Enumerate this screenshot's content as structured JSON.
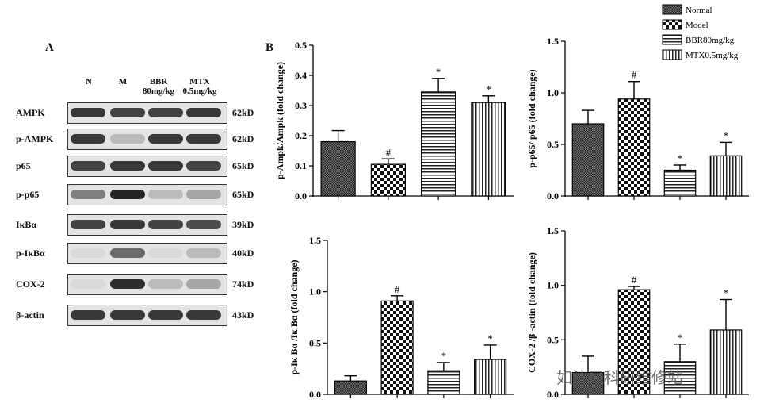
{
  "panel_a_label": "A",
  "panel_b_label": "B",
  "blot": {
    "lanes": [
      "N",
      "M",
      "BBR\n80mg/kg",
      "MTX\n0.5mg/kg"
    ],
    "rows": [
      {
        "name": "AMPK",
        "size": "62kD",
        "intensity": [
          0.85,
          0.8,
          0.8,
          0.85
        ]
      },
      {
        "name": "p-AMPK",
        "size": "62kD",
        "intensity": [
          0.85,
          0.2,
          0.85,
          0.85
        ]
      },
      {
        "name": "p65",
        "size": "65kD",
        "intensity": [
          0.8,
          0.85,
          0.85,
          0.8
        ]
      },
      {
        "name": "p-p65",
        "size": "65kD",
        "intensity": [
          0.5,
          0.95,
          0.2,
          0.3
        ]
      },
      {
        "name": "IκBα",
        "size": "39kD",
        "intensity": [
          0.8,
          0.85,
          0.8,
          0.75
        ]
      },
      {
        "name": "p-IκBα",
        "size": "40kD",
        "intensity": [
          0.05,
          0.6,
          0.05,
          0.2
        ]
      },
      {
        "name": "COX-2",
        "size": "74kD",
        "intensity": [
          0.05,
          0.9,
          0.2,
          0.3
        ]
      },
      {
        "name": "β-actin",
        "size": "43kD",
        "intensity": [
          0.85,
          0.85,
          0.85,
          0.85
        ]
      }
    ]
  },
  "legend": [
    {
      "label": "Normal",
      "pattern": "dense"
    },
    {
      "label": "Model",
      "pattern": "checker"
    },
    {
      "label": "BBR80mg/kg",
      "pattern": "hlines"
    },
    {
      "label": "MTX0.5mg/kg",
      "pattern": "vlines"
    }
  ],
  "chart_data": [
    {
      "type": "bar",
      "ylabel": "p-Ampk/Ampk (fold change)",
      "ylim": [
        0,
        0.5
      ],
      "yticks": [
        "0.0",
        "0.1",
        "0.2",
        "0.3",
        "0.4",
        "0.5"
      ],
      "categories": [
        "Normal",
        "Model",
        "BBR80mg/kg",
        "MTX0.5mg/kg"
      ],
      "values": [
        0.18,
        0.105,
        0.345,
        0.31
      ],
      "errors": [
        0.037,
        0.018,
        0.045,
        0.022
      ],
      "annotations": [
        "",
        "#",
        "*",
        "*"
      ]
    },
    {
      "type": "bar",
      "ylabel": "p-p65/ p65 (fold change)",
      "ylim": [
        0,
        1.5
      ],
      "yticks": [
        "0.0",
        "0.5",
        "1.0",
        "1.5"
      ],
      "categories": [
        "Normal",
        "Model",
        "BBR80mg/kg",
        "MTX0.5mg/kg"
      ],
      "values": [
        0.7,
        0.94,
        0.25,
        0.39
      ],
      "errors": [
        0.13,
        0.17,
        0.05,
        0.13
      ],
      "annotations": [
        "",
        "#",
        "*",
        "*"
      ]
    },
    {
      "type": "bar",
      "ylabel": "p-Iκ Bα /Iκ Bα (fold change)",
      "ylim": [
        0,
        1.5
      ],
      "yticks": [
        "0.0",
        "0.5",
        "1.0",
        "1.5"
      ],
      "categories": [
        "Normal",
        "Model",
        "BBR80mg/kg",
        "MTX0.5mg/kg"
      ],
      "values": [
        0.13,
        0.91,
        0.23,
        0.34
      ],
      "errors": [
        0.05,
        0.05,
        0.08,
        0.14
      ],
      "annotations": [
        "",
        "#",
        "*",
        "*"
      ]
    },
    {
      "type": "bar",
      "ylabel": "COX-2 /β -actin (fold change)",
      "ylim": [
        0,
        1.5
      ],
      "yticks": [
        "0.0",
        "0.5",
        "1.0",
        "1.5"
      ],
      "categories": [
        "Normal",
        "Model",
        "BBR80mg/kg",
        "MTX0.5mg/kg"
      ],
      "values": [
        0.2,
        0.96,
        0.3,
        0.59
      ],
      "errors": [
        0.15,
        0.03,
        0.16,
        0.28
      ],
      "annotations": [
        "",
        "#",
        "*",
        "*"
      ]
    }
  ],
  "watermark": "如沐风科研维修站"
}
